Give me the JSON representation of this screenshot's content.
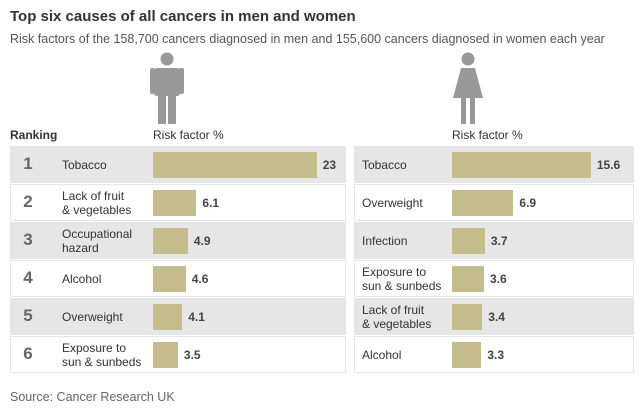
{
  "title": "Top six causes of all cancers in men and women",
  "subtitle": "Risk factors of the 158,700 cancers diagnosed in men and 155,600 cancers diagnosed in women each year",
  "ranking_label": "Ranking",
  "ranks": [
    1,
    2,
    3,
    4,
    5,
    6
  ],
  "source": "Source: Cancer Research UK",
  "chart_data": [
    {
      "type": "bar",
      "orientation": "horizontal",
      "value_header": "Risk factor %",
      "color": "#c4bd8b",
      "categories": [
        "Tobacco",
        "Lack of fruit\n& vegetables",
        "Occupational\nhazard",
        "Alcohol",
        "Overweight",
        "Exposure to\nsun & sunbeds"
      ],
      "values": [
        23,
        6.1,
        4.9,
        4.6,
        4.1,
        3.5
      ],
      "xlim": [
        0,
        25
      ]
    },
    {
      "type": "bar",
      "orientation": "horizontal",
      "value_header": "Risk factor %",
      "color": "#c4bd8b",
      "categories": [
        "Tobacco",
        "Overweight",
        "Infection",
        "Exposure to\nsun & sunbeds",
        "Lack of fruit\n& vegetables",
        "Alcohol"
      ],
      "values": [
        15.6,
        6.9,
        3.7,
        3.6,
        3.4,
        3.3
      ],
      "xlim": [
        0,
        20
      ]
    }
  ]
}
